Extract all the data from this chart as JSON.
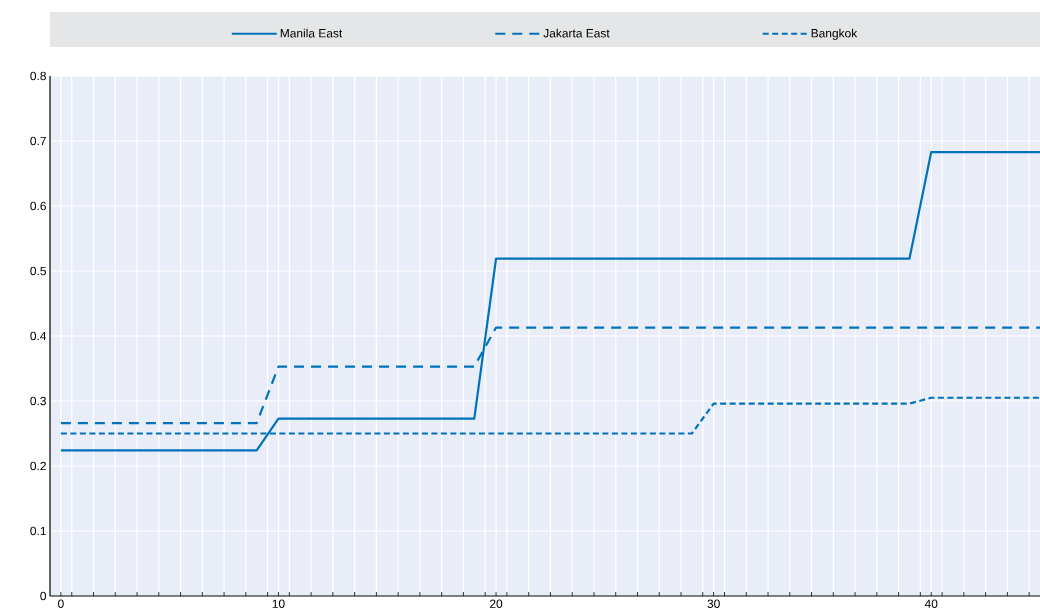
{
  "chart_data": {
    "type": "line",
    "legend": "top",
    "grid": true,
    "x": [
      0,
      1,
      2,
      3,
      4,
      5,
      6,
      7,
      8,
      9,
      10,
      11,
      12,
      13,
      14,
      15,
      16,
      17,
      18,
      19,
      20,
      21,
      22,
      23,
      24,
      25,
      26,
      27,
      28,
      29,
      30,
      31,
      32,
      33,
      34,
      35,
      36,
      37,
      38,
      39,
      40,
      41,
      42,
      43,
      44,
      45
    ],
    "xlim": [
      -0.5,
      45
    ],
    "xticks": [
      0,
      {
        "value": 0.5,
        "label": null
      },
      {
        "value": 1.5,
        "label": null
      },
      {
        "value": 2.5,
        "label": null
      },
      {
        "value": 3.5,
        "label": null
      },
      {
        "value": 4.5,
        "label": null
      },
      {
        "value": 5.5,
        "label": null
      },
      {
        "value": 6.5,
        "label": null
      },
      {
        "value": 7.5,
        "label": null
      },
      {
        "value": 8.5,
        "label": null
      },
      {
        "value": 9.5,
        "label": null
      },
      10,
      {
        "value": 10.5,
        "label": null
      },
      {
        "value": 11.5,
        "label": null
      },
      {
        "value": 12.5,
        "label": null
      },
      {
        "value": 13.5,
        "label": null
      },
      {
        "value": 14.5,
        "label": null
      },
      {
        "value": 15.5,
        "label": null
      },
      {
        "value": 16.5,
        "label": null
      },
      {
        "value": 17.5,
        "label": null
      },
      {
        "value": 18.5,
        "label": null
      },
      {
        "value": 19.5,
        "label": null
      },
      20,
      {
        "value": 20.5,
        "label": null
      },
      {
        "value": 21.5,
        "label": null
      },
      {
        "value": 22.5,
        "label": null
      },
      {
        "value": 23.5,
        "label": null
      },
      {
        "value": 24.5,
        "label": null
      },
      {
        "value": 25.5,
        "label": null
      },
      {
        "value": 26.5,
        "label": null
      },
      {
        "value": 27.5,
        "label": null
      },
      {
        "value": 28.5,
        "label": null
      },
      {
        "value": 29.5,
        "label": null
      },
      30,
      {
        "value": 30.5,
        "label": null
      },
      {
        "value": 31.5,
        "label": null
      },
      {
        "value": 32.5,
        "label": null
      },
      {
        "value": 33.5,
        "label": null
      },
      {
        "value": 34.5,
        "label": null
      },
      {
        "value": 35.5,
        "label": null
      },
      {
        "value": 36.5,
        "label": null
      },
      {
        "value": 37.5,
        "label": null
      },
      {
        "value": 38.5,
        "label": null
      },
      {
        "value": 39.5,
        "label": null
      },
      40,
      {
        "value": 40.5,
        "label": null
      },
      {
        "value": 41.5,
        "label": null
      },
      {
        "value": 42.5,
        "label": null
      },
      {
        "value": 43.5,
        "label": null
      },
      {
        "value": 44.5,
        "label": null
      }
    ],
    "ylim": [
      0,
      0.8
    ],
    "yticks": [
      0,
      0.1,
      0.2,
      0.3,
      0.4,
      0.5,
      0.6,
      0.7,
      0.8
    ],
    "series": [
      {
        "name": "Manila East",
        "color": "#0072bc",
        "line_style": "solid",
        "values": [
          0.224,
          0.224,
          0.224,
          0.224,
          0.224,
          0.224,
          0.224,
          0.224,
          0.224,
          0.224,
          0.273,
          0.273,
          0.273,
          0.273,
          0.273,
          0.273,
          0.273,
          0.273,
          0.273,
          0.273,
          0.519,
          0.519,
          0.519,
          0.519,
          0.519,
          0.519,
          0.519,
          0.519,
          0.519,
          0.519,
          0.519,
          0.519,
          0.519,
          0.519,
          0.519,
          0.519,
          0.519,
          0.519,
          0.519,
          0.519,
          0.683,
          0.683,
          0.683,
          0.683,
          0.683,
          0.683
        ]
      },
      {
        "name": "Jakarta East",
        "color": "#0072bc",
        "line_style": "dashed",
        "values": [
          0.266,
          0.266,
          0.266,
          0.266,
          0.266,
          0.266,
          0.266,
          0.266,
          0.266,
          0.266,
          0.353,
          0.353,
          0.353,
          0.353,
          0.353,
          0.353,
          0.353,
          0.353,
          0.353,
          0.353,
          0.413,
          0.413,
          0.413,
          0.413,
          0.413,
          0.413,
          0.413,
          0.413,
          0.413,
          0.413,
          0.413,
          0.413,
          0.413,
          0.413,
          0.413,
          0.413,
          0.413,
          0.413,
          0.413,
          0.413,
          0.413,
          0.413,
          0.413,
          0.413,
          0.413,
          0.413
        ]
      },
      {
        "name": "Bangkok",
        "color": "#0072bc",
        "line_style": "dotted",
        "values": [
          0.25,
          0.25,
          0.25,
          0.25,
          0.25,
          0.25,
          0.25,
          0.25,
          0.25,
          0.25,
          0.25,
          0.25,
          0.25,
          0.25,
          0.25,
          0.25,
          0.25,
          0.25,
          0.25,
          0.25,
          0.25,
          0.25,
          0.25,
          0.25,
          0.25,
          0.25,
          0.25,
          0.25,
          0.25,
          0.25,
          0.296,
          0.296,
          0.296,
          0.296,
          0.296,
          0.296,
          0.296,
          0.296,
          0.296,
          0.296,
          0.305,
          0.305,
          0.305,
          0.305,
          0.305,
          0.305
        ]
      }
    ]
  }
}
